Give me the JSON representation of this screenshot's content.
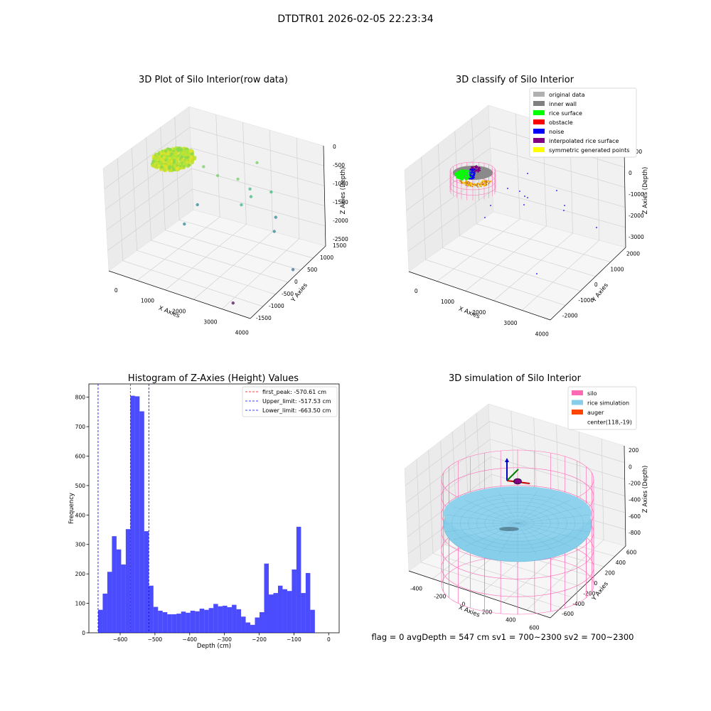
{
  "suptitle": "DTDTR01 2026-02-05 22:23:34",
  "footer": "flag = 0     avgDepth = 547 cm  sv1 = 700~2300  sv2 = 700~2300",
  "chart_data": [
    {
      "type": "scatter",
      "title": "3D Plot of Silo Interior(row data)",
      "xlabel": "X Axies",
      "ylabel": "Y Axies",
      "zlabel": "Z Axies (Depth)",
      "xticks": [
        "0",
        "1000",
        "2000",
        "3000",
        "4000"
      ],
      "yticks": [
        "-1500",
        "-1000",
        "-500",
        "0",
        "500",
        "1000",
        "1500"
      ],
      "zticks": [
        "-2500",
        "-2000",
        "-1500",
        "-1000",
        "-500",
        "0"
      ],
      "colormap": "viridis",
      "points": [
        {
          "x": 2700,
          "y": 600,
          "z": -300
        },
        {
          "x": 1400,
          "y": 300,
          "z": -600
        },
        {
          "x": 1800,
          "y": 300,
          "z": -700
        },
        {
          "x": 2300,
          "y": 400,
          "z": -700
        },
        {
          "x": 3100,
          "y": 600,
          "z": -900
        },
        {
          "x": 2500,
          "y": 600,
          "z": -1000
        },
        {
          "x": 2600,
          "y": 500,
          "z": -1100
        },
        {
          "x": 2400,
          "y": 400,
          "z": -1300
        },
        {
          "x": 3300,
          "y": 500,
          "z": -1400
        },
        {
          "x": 1300,
          "y": 200,
          "z": -1500
        },
        {
          "x": 3400,
          "y": 300,
          "z": -1600
        },
        {
          "x": 1000,
          "y": 100,
          "z": -2000
        },
        {
          "x": 4000,
          "y": 200,
          "z": -2300
        },
        {
          "x": 3300,
          "y": -1200,
          "z": -2500
        }
      ]
    },
    {
      "type": "scatter",
      "title": "3D classify of Silo Interior",
      "xlabel": "X Axies",
      "ylabel": "Y Axies",
      "zlabel": "Z Axies (Depth)",
      "xticks": [
        "0",
        "1000",
        "2000",
        "3000",
        "4000"
      ],
      "yticks": [
        "-2000",
        "-1000",
        "0",
        "1000",
        "2000"
      ],
      "zticks": [
        "-3000",
        "-2000",
        "-1000",
        "0",
        "1000"
      ],
      "legend": [
        {
          "label": "original data",
          "color": "#b0b0b0"
        },
        {
          "label": "inner wall",
          "color": "#808080"
        },
        {
          "label": "rice surface",
          "color": "#00ff00"
        },
        {
          "label": "obstacle",
          "color": "#ff0000"
        },
        {
          "label": "noise",
          "color": "#0000ff"
        },
        {
          "label": "interpolated rice surface",
          "color": "#800080"
        },
        {
          "label": "symmetric generated points",
          "color": "#ffff00"
        }
      ],
      "legend_loc": "upper right"
    },
    {
      "type": "bar",
      "title": "Histogram of Z-Axies (Height) Values",
      "xlabel": "Depth (cm)",
      "ylabel": "Frequency",
      "xlim": [
        -690,
        30
      ],
      "ylim": [
        0,
        845
      ],
      "xticks": [
        -600,
        -500,
        -400,
        -300,
        -200,
        -100,
        0
      ],
      "yticks": [
        0,
        100,
        200,
        300,
        400,
        500,
        600,
        700,
        800
      ],
      "bin_start": -663.5,
      "bin_width": 13.27,
      "values": [
        78,
        133,
        207,
        328,
        283,
        232,
        352,
        805,
        803,
        752,
        345,
        160,
        88,
        75,
        70,
        63,
        63,
        65,
        72,
        68,
        75,
        73,
        82,
        78,
        84,
        98,
        90,
        92,
        87,
        95,
        80,
        55,
        35,
        27,
        52,
        70,
        235,
        130,
        135,
        160,
        148,
        142,
        215,
        360,
        135,
        203,
        78
      ],
      "bar_color": "#0000ff",
      "vlines": [
        {
          "x": -570.61,
          "color": "#ff0000",
          "label": "first_peak: -570.61 cm"
        },
        {
          "x": -517.53,
          "color": "#0000ff",
          "label": "Upper_limit: -517.53 cm"
        },
        {
          "x": -663.5,
          "color": "#0000ff",
          "label": "Lower_limit: -663.50 cm"
        }
      ],
      "legend_loc": "upper right"
    },
    {
      "type": "scatter",
      "title": "3D simulation of Silo Interior",
      "xlabel": "X Axies",
      "ylabel": "Y Axies",
      "zlabel": "Z Axies (Depth)",
      "xticks": [
        "-400",
        "-200",
        "0",
        "200",
        "400",
        "600"
      ],
      "yticks": [
        "-600",
        "-400",
        "-200",
        "0",
        "200",
        "400",
        "600"
      ],
      "zticks": [
        "-800",
        "-600",
        "-400",
        "-200",
        "0",
        "200"
      ],
      "legend": [
        {
          "label": "silo",
          "color": "#ff69b4"
        },
        {
          "label": "rice simulation",
          "color": "#87ceeb"
        },
        {
          "label": "auger",
          "color": "#ff4500"
        },
        {
          "label": "center(118,-19)",
          "color": ""
        }
      ],
      "legend_loc": "upper right"
    }
  ]
}
